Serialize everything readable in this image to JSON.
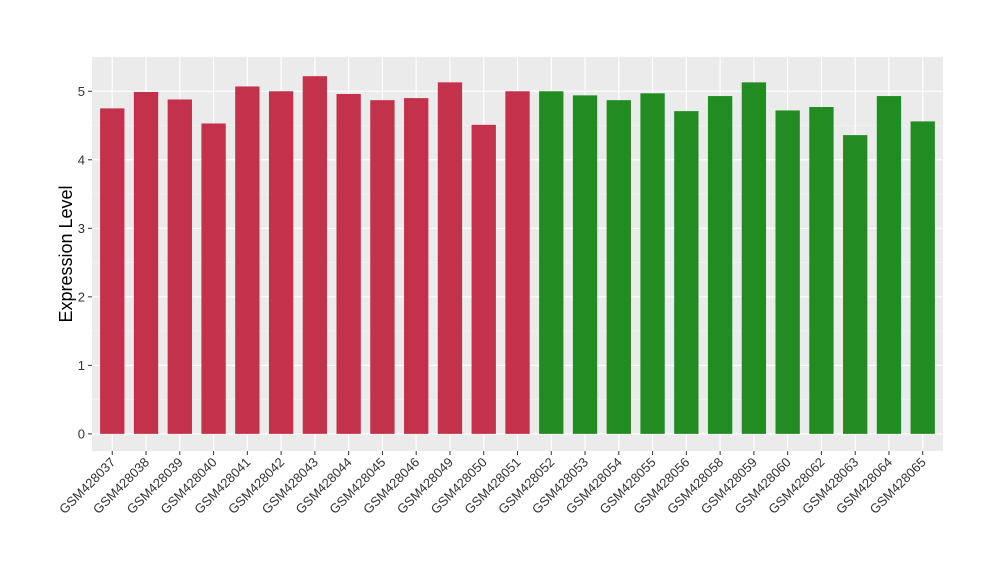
{
  "chart_data": {
    "type": "bar",
    "title": "",
    "xlabel": "",
    "ylabel": "Expression Level",
    "ylim": [
      -0.25,
      5.5
    ],
    "yticks": [
      0,
      1,
      2,
      3,
      4,
      5
    ],
    "grid": true,
    "legend": "none",
    "colors": {
      "group1": "#C3314A",
      "group2": "#228B22",
      "panel": "#EBEBEB"
    },
    "categories": [
      "GSM428037",
      "GSM428038",
      "GSM428039",
      "GSM428040",
      "GSM428041",
      "GSM428042",
      "GSM428043",
      "GSM428044",
      "GSM428045",
      "GSM428046",
      "GSM428049",
      "GSM428050",
      "GSM428051",
      "GSM428052",
      "GSM428053",
      "GSM428054",
      "GSM428055",
      "GSM428056",
      "GSM428058",
      "GSM428059",
      "GSM428060",
      "GSM428062",
      "GSM428063",
      "GSM428064",
      "GSM428065"
    ],
    "values": [
      4.75,
      4.99,
      4.88,
      4.53,
      5.07,
      5.0,
      5.22,
      4.96,
      4.87,
      4.9,
      5.13,
      4.51,
      5.0,
      5.0,
      4.94,
      4.87,
      4.97,
      4.71,
      4.93,
      5.13,
      4.72,
      4.77,
      4.36,
      4.93,
      4.56
    ],
    "groups": [
      1,
      1,
      1,
      1,
      1,
      1,
      1,
      1,
      1,
      1,
      1,
      1,
      1,
      2,
      2,
      2,
      2,
      2,
      2,
      2,
      2,
      2,
      2,
      2,
      2
    ]
  }
}
